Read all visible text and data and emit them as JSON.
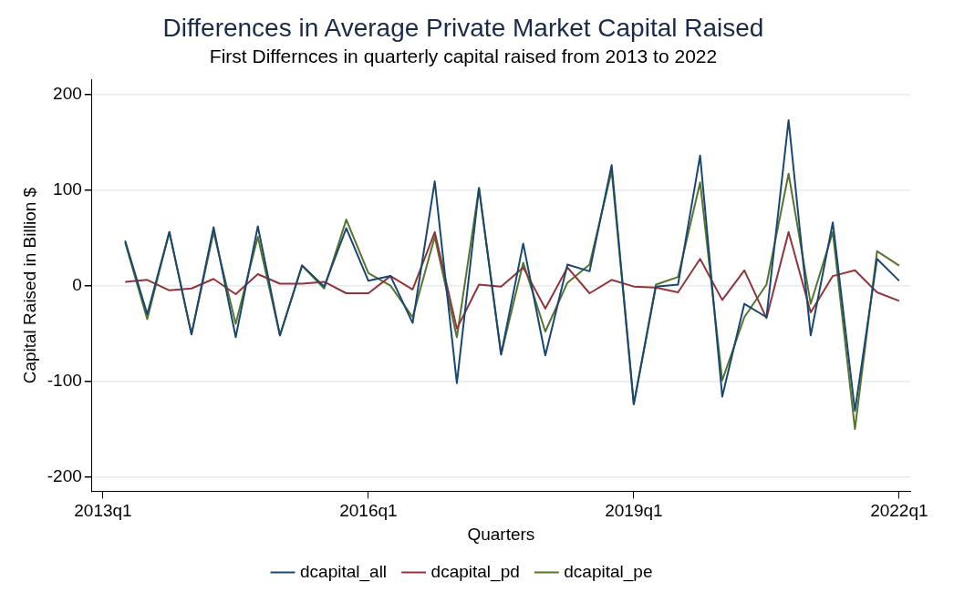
{
  "chart_data": {
    "type": "line",
    "title": "Differences in Average Private Market Capital Raised",
    "subtitle": "First Differnces in quarterly capital raised from 2013 to 2022",
    "xlabel": "Quarters",
    "ylabel": "Capital Raised in Billion $",
    "categories": [
      "2013q1",
      null,
      null,
      null,
      null,
      null,
      null,
      null,
      null,
      null,
      null,
      null,
      "2016q1",
      null,
      null,
      null,
      null,
      null,
      null,
      null,
      null,
      null,
      null,
      null,
      "2019q1",
      null,
      null,
      null,
      null,
      null,
      null,
      null,
      null,
      null,
      null,
      null,
      "2022q1"
    ],
    "series": [
      {
        "name": "dcapital_all",
        "color": "#1a476f",
        "values": [
          null,
          47,
          -30,
          56,
          -51,
          61,
          -54,
          62,
          -52,
          21,
          -1,
          60,
          5,
          10,
          -39,
          109,
          -102,
          102,
          -72,
          44,
          -73,
          22,
          15,
          126,
          -124,
          -1,
          1,
          136,
          -116,
          -19,
          -33,
          173,
          -52,
          66,
          -131,
          28,
          5
        ]
      },
      {
        "name": "dcapital_pd",
        "color": "#90353b",
        "values": [
          null,
          4,
          6,
          -5,
          -3,
          7,
          -9,
          12,
          2,
          2,
          4,
          -8,
          -8,
          10,
          -4,
          56,
          -45,
          1,
          -1,
          19,
          -24,
          19,
          -8,
          6,
          -1,
          -2,
          -7,
          28,
          -15,
          16,
          -34,
          56,
          -28,
          10,
          16,
          -7,
          -16
        ]
      },
      {
        "name": "dcapital_pe",
        "color": "#55752f",
        "values": [
          null,
          45,
          -35,
          56,
          -51,
          56,
          -40,
          51,
          -52,
          21,
          -3,
          69,
          13,
          0,
          -33,
          51,
          -54,
          102,
          -72,
          24,
          -48,
          3,
          22,
          120,
          -124,
          1,
          9,
          108,
          -99,
          -33,
          1,
          117,
          -19,
          56,
          -150,
          36,
          21
        ]
      }
    ],
    "ylim": [
      -215,
      215
    ],
    "yticks": [
      -200,
      -100,
      0,
      100,
      200
    ],
    "grid": "y",
    "legend": "bottom",
    "marker": "none",
    "line_style": "solid"
  }
}
